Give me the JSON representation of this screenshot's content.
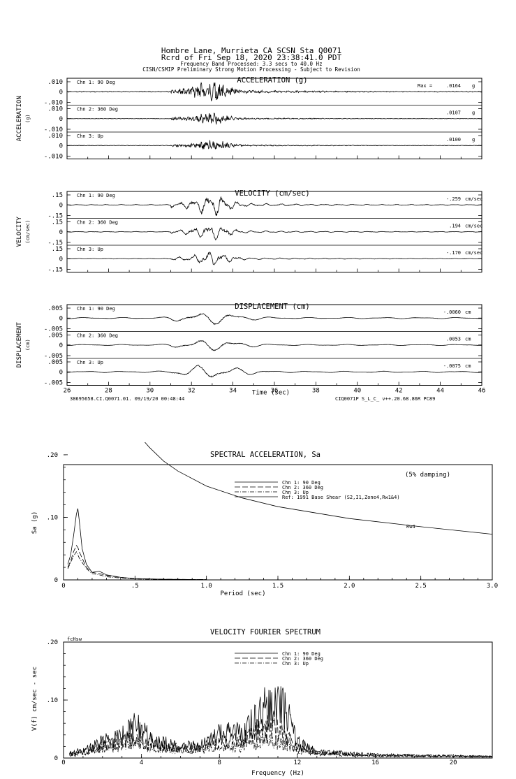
{
  "header": {
    "line1": "Hombre Lane, Murrieta CA    SCSN Sta Q0071",
    "line2": "Rcrd of Fri Sep 18, 2020 23:38:41.0 PDT",
    "line3": "Frequency Band Processed: 3.3 secs to 40.0 Hz",
    "line4": "CISN/CSMIP Preliminary Strong Motion Processing - Subject to Revision"
  },
  "footer": {
    "left": "38695658.CI.Q0071.01. 09/19/20 00:48:44",
    "right": "CIQ0071P  S_L_C_  v++.20.68.86R PC89"
  },
  "chart_data": [
    {
      "type": "line",
      "title": "ACCELERATION (g)",
      "ylabel": "ACCELERATION",
      "yunit": "(g)",
      "xlabel": "",
      "xlim": [
        26,
        46
      ],
      "ticks": [
        "",
        ".010",
        "0",
        "-.010"
      ],
      "peak_unit": "g",
      "channels": [
        {
          "name": "Chn 1: 90 Deg",
          "peak_label": "Max =",
          "peak": ".0164",
          "amp": 0.85,
          "seed": 11
        },
        {
          "name": "Chn 2: 360 Deg",
          "peak_label": "",
          "peak": ".0107",
          "amp": 0.45,
          "seed": 23
        },
        {
          "name": "Chn 3: Up",
          "peak_label": "",
          "peak": ".0100",
          "amp": 0.42,
          "seed": 37
        }
      ]
    },
    {
      "type": "line",
      "title": "VELOCITY (cm/sec)",
      "ylabel": "VELOCITY",
      "yunit": "(cm/sec)",
      "xlabel": "",
      "xlim": [
        26,
        46
      ],
      "ticks": [
        "",
        ".15",
        "0",
        "-.15"
      ],
      "peak_unit": "cm/sec",
      "channels": [
        {
          "name": "Chn 1: 90 Deg",
          "peak_label": "",
          "peak": "-.259",
          "amp": 0.8,
          "seed": 51
        },
        {
          "name": "Chn 2: 360 Deg",
          "peak_label": "",
          "peak": ".194",
          "amp": 0.55,
          "seed": 63
        },
        {
          "name": "Chn 3: Up",
          "peak_label": "",
          "peak": "-.170",
          "amp": 0.5,
          "seed": 77
        }
      ]
    },
    {
      "type": "line",
      "title": "DISPLACEMENT (cm)",
      "ylabel": "DISPLACEMENT",
      "yunit": "(cm)",
      "xlabel": "Time (sec)",
      "xlim": [
        26,
        46
      ],
      "xticks": [
        26,
        28,
        30,
        32,
        34,
        36,
        38,
        40,
        42,
        44,
        46
      ],
      "ticks": [
        "",
        ".005",
        "0",
        "-.005"
      ],
      "peak_unit": "cm",
      "channels": [
        {
          "name": "Chn 1: 90 Deg",
          "peak_label": "",
          "peak": "-.0060",
          "amp": 0.5,
          "seed": 91
        },
        {
          "name": "Chn 2: 360 Deg",
          "peak_label": "",
          "peak": ".0053",
          "amp": 0.45,
          "seed": 103
        },
        {
          "name": "Chn 3: Up",
          "peak_label": "",
          "peak": "-.0075",
          "amp": 0.55,
          "seed": 117
        }
      ]
    },
    {
      "type": "line",
      "title": "SPECTRAL ACCELERATION, Sa",
      "xlabel": "Period (sec)",
      "ylabel": "Sa (g)",
      "xlim": [
        0,
        3.0
      ],
      "ylim": [
        0,
        0.22
      ],
      "xticks": [
        0,
        0.5,
        1.0,
        1.5,
        2.0,
        2.5,
        3.0
      ],
      "xticklabels": [
        "0",
        ".5",
        "1.0",
        "1.5",
        "2.0",
        "2.5",
        "3.0"
      ],
      "yticks": [
        0,
        0.1,
        0.2
      ],
      "yticklabels": [
        "0",
        ".10",
        ".20"
      ],
      "damping": "(5% damping)",
      "ref_label": "Rw4",
      "legend": [
        "Chn 1: 90 Deg",
        "Chn 2: 360 Deg",
        "Chn 3: Up",
        "Ref: 1991 Base Shear (S2,I1,Zone4,Rw1&4)"
      ],
      "series": [
        {
          "name": "Chn 1: 90 Deg",
          "x": [
            0.03,
            0.05,
            0.07,
            0.09,
            0.1,
            0.11,
            0.13,
            0.16,
            0.2,
            0.25,
            0.3,
            0.4,
            0.5,
            0.7,
            1.0
          ],
          "y": [
            0.025,
            0.04,
            0.07,
            0.105,
            0.114,
            0.095,
            0.05,
            0.025,
            0.012,
            0.014,
            0.008,
            0.004,
            0.002,
            0.001,
            0.0005
          ]
        },
        {
          "name": "Chn 2: 360 Deg",
          "x": [
            0.03,
            0.05,
            0.07,
            0.09,
            0.1,
            0.11,
            0.13,
            0.16,
            0.2,
            0.25,
            0.3,
            0.4,
            0.5,
            0.7,
            1.0
          ],
          "y": [
            0.02,
            0.03,
            0.045,
            0.055,
            0.052,
            0.045,
            0.035,
            0.02,
            0.012,
            0.01,
            0.007,
            0.004,
            0.002,
            0.001,
            0.0005
          ]
        },
        {
          "name": "Chn 3: Up",
          "x": [
            0.03,
            0.05,
            0.07,
            0.09,
            0.1,
            0.11,
            0.13,
            0.16,
            0.2,
            0.25,
            0.3,
            0.4,
            0.5,
            0.7,
            1.0
          ],
          "y": [
            0.018,
            0.028,
            0.038,
            0.045,
            0.04,
            0.035,
            0.028,
            0.018,
            0.01,
            0.008,
            0.005,
            0.003,
            0.0015,
            0.0008,
            0.0004
          ]
        },
        {
          "name": "Ref: 1991 Base Shear (S2,I1,Zone4,Rw1&4)",
          "x": [
            0.5,
            0.55,
            0.6,
            0.7,
            0.8,
            1.0,
            1.25,
            1.5,
            2.0,
            2.5,
            3.0
          ],
          "y": [
            0.24,
            0.225,
            0.212,
            0.19,
            0.174,
            0.15,
            0.131,
            0.117,
            0.098,
            0.085,
            0.073
          ]
        }
      ]
    },
    {
      "type": "line",
      "title": "VELOCITY FOURIER SPECTRUM",
      "xlabel": "Frequency (Hz)",
      "ylabel": "V(f)   cm/sec - sec",
      "corner_label": "fcHsw",
      "xlim": [
        0,
        22
      ],
      "ylim": [
        0,
        0.2
      ],
      "xticks": [
        0,
        4,
        8,
        12,
        16,
        20
      ],
      "yticks": [
        0,
        0.1,
        0.2
      ],
      "yticklabels": [
        "0",
        ".10",
        ".20"
      ],
      "legend": [
        "Chn 1: 90 Deg",
        "Chn 2: 360 Deg",
        "Chn 3: Up"
      ],
      "series": [
        {
          "name": "Chn 1: 90 Deg",
          "x": [
            0.5,
            1,
            2,
            3,
            3.7,
            4.5,
            6,
            7,
            8,
            9,
            9.5,
            10,
            10.5,
            11,
            11.5,
            12,
            13,
            16,
            20,
            22
          ],
          "y": [
            0.01,
            0.015,
            0.03,
            0.04,
            0.06,
            0.035,
            0.02,
            0.025,
            0.045,
            0.05,
            0.06,
            0.08,
            0.1,
            0.105,
            0.08,
            0.03,
            0.012,
            0.006,
            0.004,
            0.003
          ]
        },
        {
          "name": "Chn 2: 360 Deg",
          "x": [
            0.5,
            1,
            2,
            3,
            3.7,
            4.5,
            6,
            7,
            8,
            9,
            9.5,
            10,
            10.5,
            11,
            11.5,
            12,
            13,
            16,
            20,
            22
          ],
          "y": [
            0.008,
            0.012,
            0.022,
            0.03,
            0.04,
            0.028,
            0.018,
            0.02,
            0.03,
            0.035,
            0.04,
            0.05,
            0.06,
            0.055,
            0.04,
            0.02,
            0.01,
            0.005,
            0.004,
            0.003
          ]
        },
        {
          "name": "Chn 3: Up",
          "x": [
            0.5,
            1,
            2,
            3,
            3.7,
            4.5,
            6,
            7,
            8,
            9,
            9.5,
            10,
            10.5,
            11,
            11.5,
            12,
            13,
            16,
            20,
            22
          ],
          "y": [
            0.006,
            0.01,
            0.018,
            0.022,
            0.028,
            0.02,
            0.015,
            0.016,
            0.02,
            0.022,
            0.025,
            0.03,
            0.032,
            0.03,
            0.025,
            0.015,
            0.008,
            0.004,
            0.003,
            0.002
          ]
        }
      ]
    }
  ]
}
